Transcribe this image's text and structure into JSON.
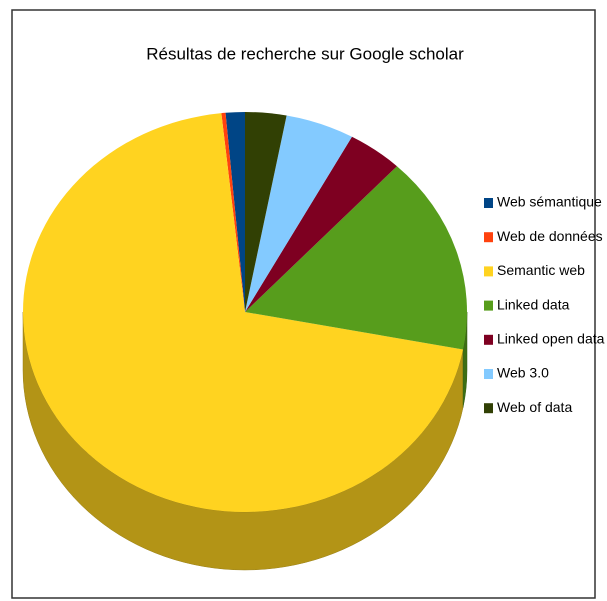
{
  "chart_data": {
    "type": "pie",
    "title": "Résultas de recherche sur Google scholar",
    "categories": [
      "Web sémantique",
      "Web de données",
      "Semantic web",
      "Linked data",
      "Linked open data",
      "Web 3.0",
      "Web of data"
    ],
    "values": [
      1.4,
      0.3,
      70.3,
      16,
      4,
      5,
      3
    ],
    "colors": [
      "#004586",
      "#ff420e",
      "#ffd320",
      "#579d1c",
      "#7e0021",
      "#83caff",
      "#314004"
    ],
    "legend": "right"
  }
}
